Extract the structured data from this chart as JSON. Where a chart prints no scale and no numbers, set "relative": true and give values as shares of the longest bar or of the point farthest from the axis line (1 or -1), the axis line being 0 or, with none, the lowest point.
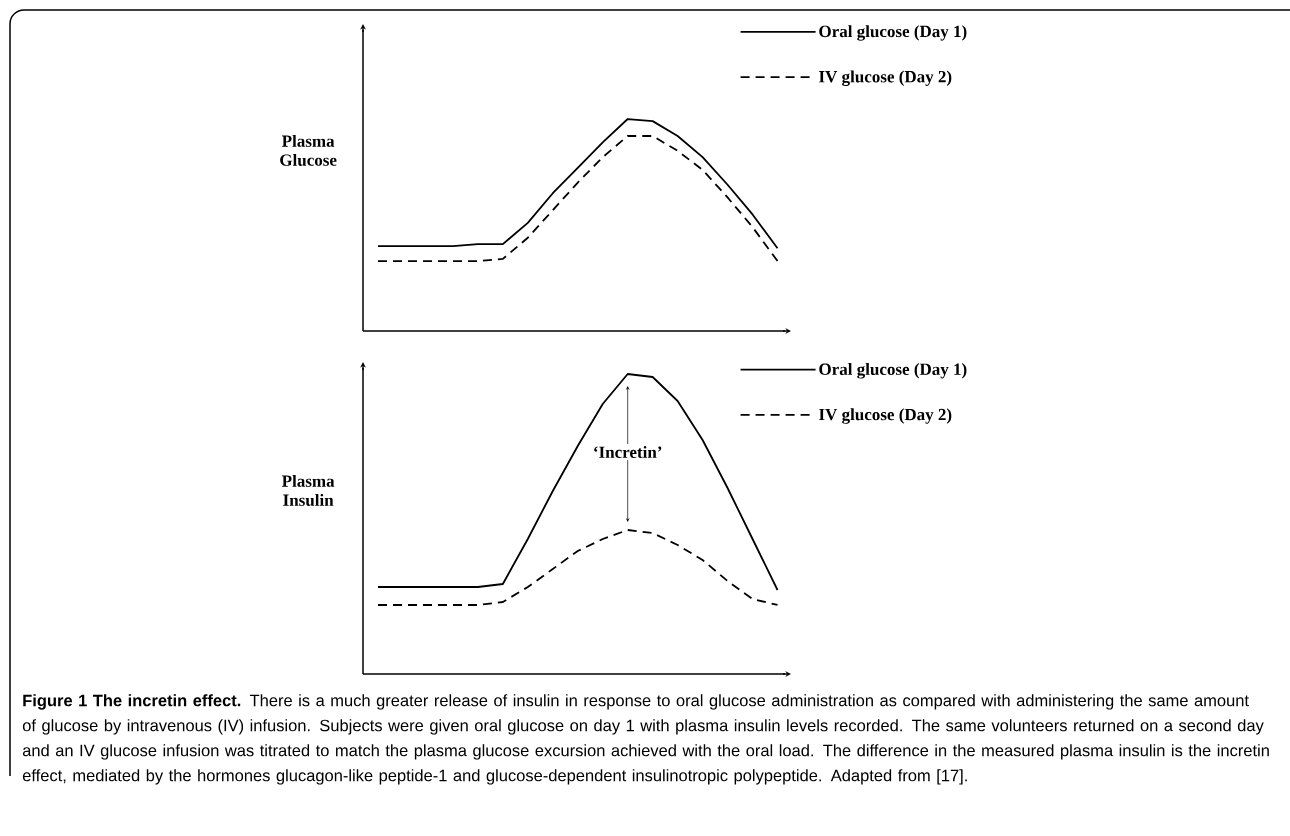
{
  "chart_data": [
    {
      "type": "line",
      "relative": true,
      "ylabel": "Plasma Glucose",
      "legend": "top right",
      "categories": [
        null,
        null,
        null,
        null,
        null,
        null,
        null,
        null,
        null,
        null,
        null,
        null,
        null,
        null,
        null,
        null,
        null
      ],
      "series": [
        {
          "name": "Oral glucose (Day 1)",
          "color": "#000000",
          "line_style": "solid",
          "values": [
            0.4,
            0.4,
            0.4,
            0.4,
            0.41,
            0.41,
            0.51,
            0.65,
            0.77,
            0.89,
            1.0,
            0.99,
            0.92,
            0.82,
            0.69,
            0.55,
            0.39
          ]
        },
        {
          "name": "IV glucose (Day 2)",
          "color": "#000000",
          "line_style": "dashed",
          "values": [
            0.33,
            0.33,
            0.33,
            0.33,
            0.33,
            0.34,
            0.44,
            0.57,
            0.7,
            0.82,
            0.92,
            0.92,
            0.85,
            0.76,
            0.63,
            0.49,
            0.33
          ]
        }
      ]
    },
    {
      "type": "line",
      "relative": true,
      "ylabel": "Plasma Insulin",
      "legend": "top right",
      "categories": [
        null,
        null,
        null,
        null,
        null,
        null,
        null,
        null,
        null,
        null,
        null,
        null,
        null,
        null,
        null,
        null,
        null
      ],
      "series": [
        {
          "name": "Oral glucose (Day 1)",
          "color": "#000000",
          "line_style": "solid",
          "values": [
            0.29,
            0.29,
            0.29,
            0.29,
            0.29,
            0.3,
            0.45,
            0.61,
            0.76,
            0.9,
            1.0,
            0.99,
            0.91,
            0.78,
            0.62,
            0.45,
            0.28
          ]
        },
        {
          "name": "IV glucose (Day 2)",
          "color": "#000000",
          "line_style": "dashed",
          "values": [
            0.23,
            0.23,
            0.23,
            0.23,
            0.23,
            0.24,
            0.29,
            0.35,
            0.41,
            0.45,
            0.48,
            0.47,
            0.43,
            0.38,
            0.31,
            0.25,
            0.23
          ]
        }
      ],
      "annotations": [
        "‘Incretin’",
        "**Figure 1 The incretin effect.** There is a much greater release of insulin in response to oral glucose administration as compared with administering the same amount of glucose by intravenous (IV) infusion. Subjects were given oral glucose on day 1 with plasma insulin levels recorded. The same volunteers returned on a second day and an IV glucose infusion was titrated to match the plasma glucose excursion achieved with the oral load. The difference in the measured plasma insulin is the incretin effect, mediated by the hormones glucagon-like peptide-1 and glucose-dependent insulinotropic polypeptide. Adapted from [17]."
      ]
    }
  ]
}
